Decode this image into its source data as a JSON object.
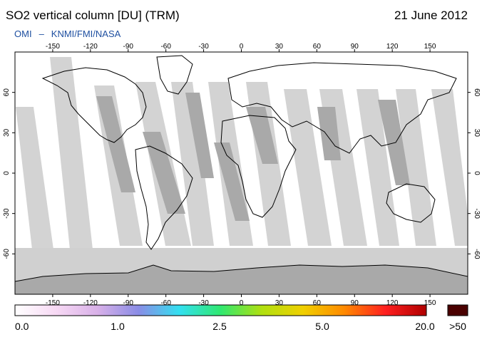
{
  "header": {
    "title": "SO2 vertical column [DU] (TRM)",
    "date": "21 June 2012",
    "credit_left": "OMI",
    "credit_sep": "–",
    "credit_right": "KNMI/FMI/NASA"
  },
  "map": {
    "projection": "equirectangular",
    "lon_ticks": [
      -150,
      -120,
      -90,
      -60,
      -30,
      0,
      30,
      60,
      90,
      120,
      150
    ],
    "lat_ticks": [
      60,
      30,
      0,
      -30,
      -60
    ],
    "lon_tick_labels": [
      "-150",
      "-120",
      "-90",
      "-60",
      "-30",
      "0",
      "30",
      "60",
      "90",
      "120",
      "150"
    ],
    "lat_tick_labels": [
      "60",
      "30",
      "0",
      "-30",
      "-60"
    ],
    "colors": {
      "no_data_gap": "#d3d3d3",
      "gap_dark": "#a9a9a9",
      "polar_night": "#d0d0d0",
      "coastline": "#000000",
      "background": "#ffffff"
    }
  },
  "colorbar": {
    "labels": [
      "0.0",
      "1.0",
      "2.5",
      "5.0",
      "20.0"
    ],
    "overflow_label": ">50",
    "overflow_color": "#4a0000",
    "stops": [
      "#ffffff",
      "#f7d9f4",
      "#d9b1e8",
      "#8a8ce6",
      "#33e0f0",
      "#30e870",
      "#b0e010",
      "#f0d000",
      "#ff8a00",
      "#ff2020",
      "#b00000"
    ]
  }
}
